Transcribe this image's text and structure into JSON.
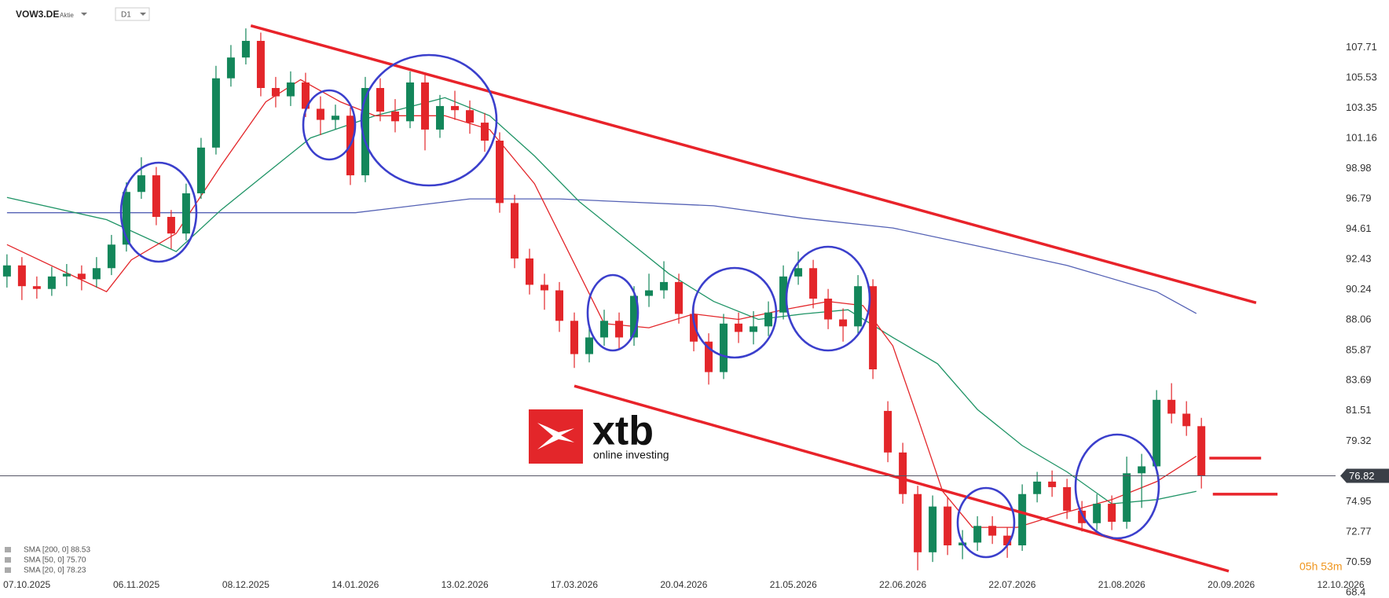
{
  "chart_data": {
    "type": "candlestick",
    "symbol_type": "Aktie",
    "timeframe": "D1",
    "countdown": "05h 53m",
    "logo": {
      "name": "xtb",
      "tagline": "online investing"
    },
    "xlim": [
      -5.4,
      273.7
    ],
    "ylim": [
      68.0,
      111.15
    ],
    "xticks": [
      {
        "value": 0,
        "label": "07.10.2025"
      },
      {
        "value": 22,
        "label": "06.11.2025"
      },
      {
        "value": 44,
        "label": "08.12.2025"
      },
      {
        "value": 66,
        "label": "14.01.2026"
      },
      {
        "value": 88,
        "label": "13.02.2026"
      },
      {
        "value": 110,
        "label": "17.03.2026"
      },
      {
        "value": 132,
        "label": "20.04.2026"
      },
      {
        "value": 154,
        "label": "21.05.2026"
      },
      {
        "value": 176,
        "label": "22.06.2026"
      },
      {
        "value": 198,
        "label": "22.07.2026"
      },
      {
        "value": 220,
        "label": "21.08.2026"
      },
      {
        "value": 242,
        "label": "20.09.2026"
      },
      {
        "value": 264,
        "label": "12.10.2026"
      }
    ],
    "yticks": [
      107.71,
      105.53,
      103.35,
      101.16,
      98.98,
      96.79,
      94.61,
      92.43,
      90.24,
      88.06,
      85.87,
      83.69,
      81.51,
      79.32,
      74.95,
      72.77,
      70.59,
      68.4
    ],
    "last_price": 76.82,
    "series": [
      {
        "name": "VOW3.DE",
        "type": "candlestick",
        "up_color": "#13865a",
        "down_color": "#e3262a",
        "x": [
          -4,
          -1,
          2,
          5,
          8,
          11,
          14,
          17,
          20,
          23,
          26,
          29,
          32,
          35,
          38,
          41,
          44,
          47,
          50,
          53,
          56,
          59,
          62,
          65,
          68,
          71,
          74,
          77,
          80,
          83,
          86,
          89,
          92,
          95,
          98,
          101,
          104,
          107,
          110,
          113,
          116,
          119,
          122,
          125,
          128,
          131,
          134,
          137,
          140,
          143,
          146,
          149,
          152,
          155,
          158,
          161,
          164,
          167,
          170,
          173,
          176,
          179,
          182,
          185,
          188,
          191,
          194,
          197,
          200,
          203,
          206,
          209,
          212,
          215,
          218,
          221,
          224,
          227,
          230,
          233,
          236
        ],
        "open": [
          91.2,
          92.0,
          90.5,
          90.3,
          91.2,
          91.4,
          91.0,
          91.8,
          93.5,
          97.3,
          98.5,
          95.5,
          94.3,
          97.2,
          100.5,
          105.5,
          107.0,
          108.2,
          104.8,
          104.2,
          105.2,
          103.3,
          102.5,
          102.8,
          98.5,
          104.8,
          103.1,
          102.4,
          105.2,
          101.8,
          103.5,
          103.2,
          102.3,
          101.0,
          96.5,
          92.5,
          90.6,
          90.2,
          88.0,
          85.6,
          86.8,
          88.0,
          86.8,
          89.8,
          90.2,
          90.8,
          88.5,
          86.5,
          84.3,
          87.8,
          87.2,
          87.6,
          88.6,
          91.2,
          91.8,
          89.6,
          88.1,
          87.6,
          90.5,
          81.5,
          78.5,
          75.5,
          71.3,
          74.6,
          71.8,
          72.0,
          73.2,
          72.5,
          71.8,
          75.5,
          76.4,
          76.0,
          74.3,
          73.4,
          74.8,
          73.5,
          77.0,
          77.5,
          82.3,
          81.3,
          80.4
        ],
        "high": [
          92.8,
          92.6,
          91.2,
          91.9,
          92.1,
          92.0,
          92.6,
          94.2,
          98.0,
          99.8,
          99.1,
          96.0,
          97.9,
          101.2,
          106.4,
          107.9,
          109.1,
          108.8,
          105.6,
          106.0,
          105.9,
          104.2,
          103.6,
          103.4,
          105.6,
          105.5,
          104.0,
          106.0,
          105.8,
          104.3,
          104.6,
          103.9,
          103.0,
          101.6,
          97.1,
          93.2,
          91.4,
          90.8,
          88.6,
          87.6,
          88.8,
          88.6,
          90.5,
          91.4,
          92.3,
          91.4,
          89.2,
          87.1,
          88.5,
          88.6,
          88.7,
          89.4,
          92.0,
          93.0,
          92.4,
          90.3,
          88.9,
          91.3,
          91.0,
          82.2,
          79.2,
          76.1,
          75.4,
          75.3,
          72.9,
          73.9,
          73.9,
          73.1,
          76.2,
          77.1,
          77.2,
          76.6,
          75.0,
          75.5,
          75.4,
          78.2,
          78.4,
          83.0,
          83.5,
          82.2,
          81.0
        ],
        "low": [
          90.4,
          89.5,
          89.6,
          89.8,
          90.5,
          90.2,
          90.4,
          91.3,
          93.0,
          96.8,
          94.9,
          93.2,
          93.8,
          96.8,
          100.0,
          104.9,
          106.5,
          104.2,
          103.4,
          103.5,
          102.7,
          101.4,
          101.8,
          97.8,
          98.0,
          102.4,
          101.6,
          101.9,
          100.3,
          101.2,
          102.5,
          101.5,
          100.2,
          95.8,
          91.8,
          89.9,
          88.8,
          87.2,
          84.6,
          85.0,
          86.2,
          85.9,
          86.2,
          89.0,
          89.6,
          87.8,
          85.8,
          83.4,
          83.8,
          86.4,
          86.3,
          86.9,
          88.1,
          90.6,
          88.9,
          87.4,
          86.5,
          87.0,
          83.8,
          77.8,
          74.8,
          70.0,
          70.6,
          71.1,
          70.8,
          71.4,
          71.9,
          70.9,
          71.4,
          74.9,
          75.3,
          73.7,
          72.8,
          72.9,
          72.9,
          73.0,
          74.5,
          77.0,
          80.6,
          79.7,
          75.9
        ],
        "close": [
          92.0,
          90.5,
          90.3,
          91.2,
          91.4,
          91.0,
          91.8,
          93.5,
          97.3,
          98.5,
          95.5,
          94.3,
          97.2,
          100.5,
          105.5,
          107.0,
          108.2,
          104.8,
          104.2,
          105.2,
          103.3,
          102.5,
          102.8,
          98.5,
          104.8,
          103.1,
          102.4,
          105.2,
          101.8,
          103.5,
          103.2,
          102.3,
          101.0,
          96.5,
          92.5,
          90.6,
          90.2,
          88.0,
          85.6,
          86.8,
          88.0,
          86.8,
          89.8,
          90.2,
          90.8,
          88.5,
          86.5,
          84.3,
          87.8,
          87.2,
          87.6,
          88.6,
          91.2,
          91.8,
          89.6,
          88.1,
          87.6,
          90.5,
          84.5,
          78.5,
          75.5,
          71.3,
          74.6,
          71.8,
          72.0,
          73.2,
          72.5,
          71.8,
          75.5,
          76.4,
          76.0,
          74.3,
          73.4,
          74.8,
          73.5,
          77.0,
          77.5,
          82.3,
          81.3,
          80.4,
          76.82
        ]
      },
      {
        "name": "SMA [200, 0] 88.53",
        "type": "line",
        "color": "#5562b5",
        "x": [
          -4,
          66,
          89,
          107,
          138,
          156,
          174,
          191,
          209,
          227,
          235
        ],
        "values": [
          95.8,
          95.8,
          96.8,
          96.8,
          96.3,
          95.4,
          94.7,
          93.4,
          92.0,
          90.1,
          88.53
        ]
      },
      {
        "name": "SMA [50, 0] 75.70",
        "type": "line",
        "color": "#1f9466",
        "x": [
          -4,
          16,
          30,
          39,
          48,
          57,
          70,
          84,
          93,
          102,
          111,
          120,
          129,
          138,
          147,
          156,
          165,
          174,
          183,
          191,
          200,
          209,
          218,
          227,
          235
        ],
        "values": [
          96.9,
          95.3,
          93.0,
          96.0,
          98.6,
          101.2,
          102.8,
          104.1,
          102.8,
          99.9,
          96.6,
          94.0,
          91.4,
          89.4,
          88.1,
          88.5,
          88.8,
          86.8,
          84.9,
          81.6,
          79.0,
          77.1,
          74.8,
          75.1,
          75.7
        ]
      },
      {
        "name": "SMA [20, 0] 78.23",
        "type": "line",
        "color": "#e3262a",
        "x": [
          -4,
          16,
          21,
          30,
          39,
          48,
          55,
          63,
          70,
          84,
          93,
          102,
          111,
          116,
          125,
          134,
          143,
          152,
          161,
          168,
          174,
          179,
          184,
          190,
          199,
          208,
          218,
          227,
          235
        ],
        "values": [
          93.5,
          90.1,
          92.4,
          94.3,
          99.2,
          103.8,
          105.4,
          103.8,
          102.8,
          102.8,
          101.8,
          97.9,
          91.4,
          87.8,
          87.5,
          88.5,
          88.1,
          88.8,
          89.4,
          89.1,
          86.2,
          81.0,
          75.7,
          73.1,
          73.1,
          74.1,
          75.1,
          76.4,
          78.23
        ]
      }
    ],
    "trendlines": [
      {
        "color": "#e8232a",
        "x": [
          45,
          247
        ],
        "y": [
          109.3,
          89.3
        ]
      },
      {
        "color": "#e8232a",
        "x": [
          110,
          241.5
        ],
        "y": [
          83.3,
          69.94
        ]
      },
      {
        "color": "#e8232a",
        "x": [
          237.6,
          248
        ],
        "y": [
          78.09,
          78.09
        ]
      },
      {
        "color": "#e8232a",
        "x": [
          238.3,
          251.3
        ],
        "y": [
          75.49,
          75.49
        ]
      }
    ]
  }
}
